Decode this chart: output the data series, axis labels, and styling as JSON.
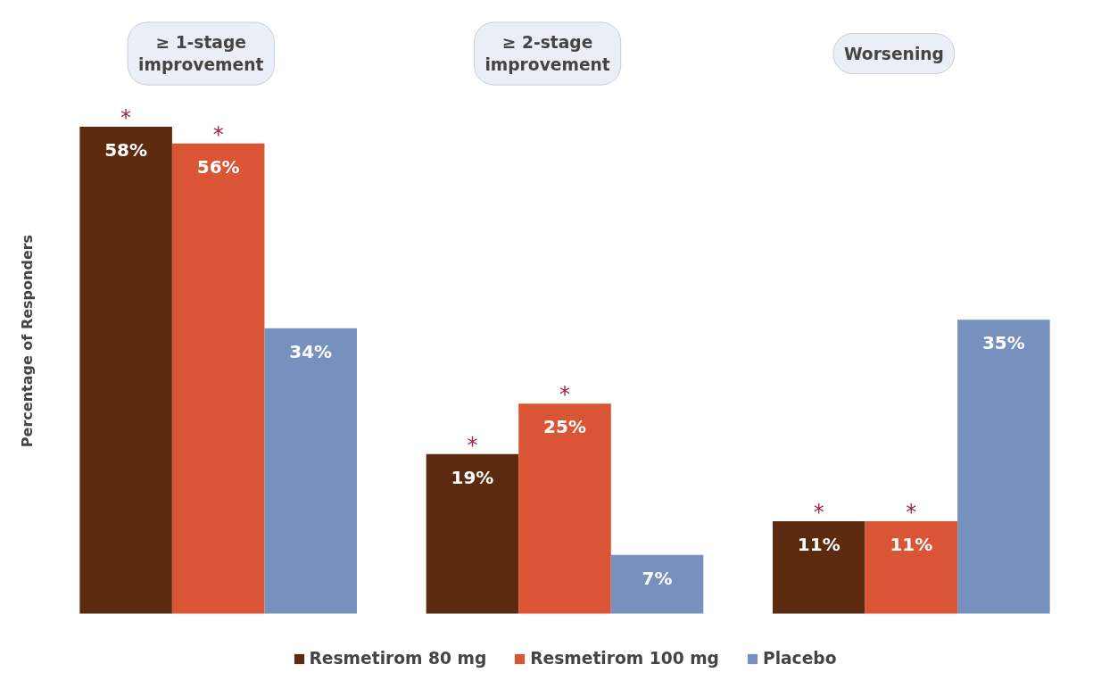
{
  "chart_data": {
    "type": "bar",
    "ylabel": "Percentage of Responders",
    "categories": [
      "≥ 1-stage\nimprovement",
      "≥ 2-stage\nimprovement",
      "Worsening"
    ],
    "series": [
      {
        "name": "Resmetirom 80 mg",
        "color": "#5c2a0e",
        "values": [
          58,
          19,
          11
        ],
        "value_labels": [
          "58%",
          "19%",
          "11%"
        ]
      },
      {
        "name": "Resmetirom 100 mg",
        "color": "#d95535",
        "values": [
          56,
          25,
          11
        ],
        "value_labels": [
          "56%",
          "25%",
          "11%"
        ]
      },
      {
        "name": "Placebo",
        "color": "#7791bf",
        "values": [
          34,
          7,
          35
        ],
        "value_labels": [
          "34%",
          "7%",
          "35%"
        ]
      }
    ],
    "annotations": [
      "*",
      "*",
      "*",
      "*",
      "*",
      "*"
    ],
    "tick_labels": false,
    "grid": false,
    "legend": "bottom"
  }
}
